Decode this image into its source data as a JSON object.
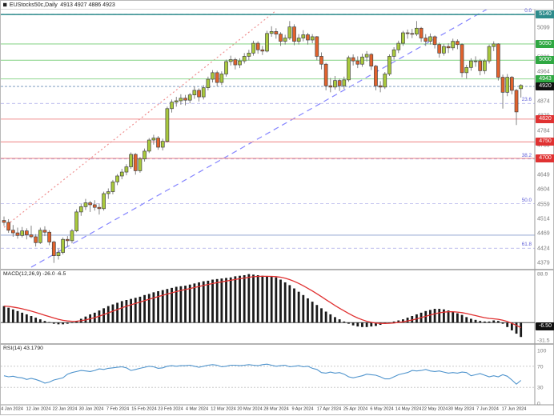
{
  "header": {
    "symbol_title": "EUStocks50c,Daily",
    "ohlc": "4913 4927 4886 4923"
  },
  "colors": {
    "bull": "#a9c93c",
    "bear": "#e2622d",
    "candle_stroke": "#444444",
    "wick": "#777777",
    "green_line": "#8fd68f",
    "green_badge": "#2fa842",
    "teal_line": "#2d8c8c",
    "teal_badge": "#2d8c8c",
    "red_line": "#ef8f8f",
    "red_badge": "#e03232",
    "steel_line": "#9fb0d8",
    "bid_line": "#8ea8c8",
    "bid_badge": "#111111",
    "fib": "#8c8ce0",
    "trend_blue": "#8484ff",
    "trend_red": "#ef9090",
    "macd_bar": "#1a1a1a",
    "macd_signal": "#e03030",
    "rsi_line": "#4f94cd"
  },
  "time_axis": {
    "labels": [
      "4 Jan 2024",
      "12 Jan 2024",
      "22 Jan 2024",
      "30 Jan 2024",
      "7 Feb 2024",
      "15 Feb 2024",
      "23 Feb 2024",
      "4 Mar 2024",
      "12 Mar 2024",
      "20 Mar 2024",
      "28 Mar 2024",
      "9 Apr 2024",
      "17 Apr 2024",
      "25 Apr 2024",
      "6 May 2024",
      "14 May 2024",
      "22 May 2024",
      "30 May 2024",
      "7 Jun 2024",
      "17 Jun 2024"
    ]
  },
  "chart_data": [
    {
      "type": "candlestick",
      "title": "EUStocks50c,Daily",
      "ylim": [
        4362,
        5155
      ],
      "y_axis_labels": [
        5099,
        5009,
        4964,
        4874,
        4829,
        4784,
        4739,
        4694,
        4649,
        4604,
        4559,
        4514,
        4469,
        4424,
        4379
      ],
      "price_lines": [
        {
          "price": 5140,
          "style": "teal",
          "badge": "5140"
        },
        {
          "price": 5050,
          "style": "green",
          "badge": "5050"
        },
        {
          "price": 5000,
          "style": "green",
          "badge": "5000"
        },
        {
          "price": 4943,
          "style": "green",
          "badge": "4943"
        },
        {
          "price": 4920,
          "style": "bid",
          "badge": "4920"
        },
        {
          "price": 4820,
          "style": "red",
          "badge": "4820"
        },
        {
          "price": 4750,
          "style": "red",
          "badge": "4750"
        },
        {
          "price": 4700,
          "style": "red",
          "badge": "4700"
        },
        {
          "price": 4465,
          "style": "steel",
          "badge": null
        }
      ],
      "fib_levels": [
        {
          "label": "0.0",
          "price": 5141
        },
        {
          "label": "23.6",
          "price": 4868
        },
        {
          "label": "38.2",
          "price": 4698
        },
        {
          "label": "50.0",
          "price": 4561
        },
        {
          "label": "61.8",
          "price": 4425
        }
      ],
      "trend_lines": [
        {
          "dash": "dashed",
          "color_key": "trend_blue",
          "from": {
            "bar": 6,
            "price": 4367
          },
          "to": {
            "bar": 107,
            "price": 5160
          }
        },
        {
          "dash": "dotted",
          "color_key": "trend_red",
          "from": {
            "bar": 0,
            "price": 4489
          },
          "to": {
            "bar": 60,
            "price": 5152
          }
        }
      ],
      "candles": [
        [
          4510,
          4522,
          4494,
          4504
        ],
        [
          4504,
          4514,
          4472,
          4480
        ],
        [
          4480,
          4496,
          4460,
          4472
        ],
        [
          4472,
          4488,
          4454,
          4464
        ],
        [
          4464,
          4490,
          4458,
          4478
        ],
        [
          4478,
          4486,
          4452,
          4466
        ],
        [
          4466,
          4494,
          4456,
          4460
        ],
        [
          4460,
          4468,
          4430,
          4442
        ],
        [
          4442,
          4488,
          4438,
          4480
        ],
        [
          4480,
          4492,
          4462,
          4474
        ],
        [
          4474,
          4480,
          4434,
          4444
        ],
        [
          4444,
          4448,
          4380,
          4402
        ],
        [
          4402,
          4424,
          4390,
          4412
        ],
        [
          4412,
          4458,
          4406,
          4452
        ],
        [
          4452,
          4462,
          4430,
          4448
        ],
        [
          4448,
          4484,
          4440,
          4478
        ],
        [
          4478,
          4544,
          4474,
          4536
        ],
        [
          4536,
          4560,
          4524,
          4552
        ],
        [
          4552,
          4576,
          4542,
          4564
        ],
        [
          4564,
          4570,
          4536,
          4558
        ],
        [
          4558,
          4572,
          4540,
          4550
        ],
        [
          4550,
          4562,
          4528,
          4546
        ],
        [
          4546,
          4598,
          4540,
          4592
        ],
        [
          4592,
          4608,
          4576,
          4598
        ],
        [
          4598,
          4634,
          4590,
          4628
        ],
        [
          4628,
          4652,
          4618,
          4646
        ],
        [
          4646,
          4668,
          4636,
          4658
        ],
        [
          4658,
          4682,
          4648,
          4674
        ],
        [
          4674,
          4718,
          4668,
          4712
        ],
        [
          4712,
          4716,
          4650,
          4662
        ],
        [
          4662,
          4704,
          4656,
          4698
        ],
        [
          4698,
          4730,
          4690,
          4722
        ],
        [
          4722,
          4762,
          4716,
          4756
        ],
        [
          4756,
          4772,
          4742,
          4762
        ],
        [
          4762,
          4768,
          4726,
          4734
        ],
        [
          4734,
          4760,
          4724,
          4752
        ],
        [
          4752,
          4858,
          4748,
          4852
        ],
        [
          4852,
          4880,
          4840,
          4872
        ],
        [
          4872,
          4888,
          4858,
          4876
        ],
        [
          4876,
          4896,
          4864,
          4884
        ],
        [
          4884,
          4894,
          4862,
          4878
        ],
        [
          4878,
          4900,
          4868,
          4894
        ],
        [
          4894,
          4920,
          4882,
          4908
        ],
        [
          4908,
          4914,
          4874,
          4888
        ],
        [
          4888,
          4924,
          4880,
          4916
        ],
        [
          4916,
          4950,
          4908,
          4942
        ],
        [
          4942,
          4970,
          4932,
          4962
        ],
        [
          4962,
          4968,
          4920,
          4932
        ],
        [
          4932,
          4966,
          4924,
          4958
        ],
        [
          4958,
          5002,
          4950,
          4996
        ],
        [
          4996,
          5014,
          4984,
          5002
        ],
        [
          5002,
          5008,
          4972,
          4986
        ],
        [
          4986,
          5006,
          4976,
          4998
        ],
        [
          4998,
          5022,
          4990,
          5012
        ],
        [
          5012,
          5032,
          5000,
          5022
        ],
        [
          5022,
          5060,
          5014,
          5052
        ],
        [
          5052,
          5058,
          5020,
          5032
        ],
        [
          5032,
          5044,
          5016,
          5028
        ],
        [
          5028,
          5090,
          5024,
          5082
        ],
        [
          5082,
          5104,
          5072,
          5088
        ],
        [
          5088,
          5098,
          5066,
          5080
        ],
        [
          5080,
          5086,
          5044,
          5058
        ],
        [
          5058,
          5078,
          5048,
          5068
        ],
        [
          5068,
          5120,
          5062,
          5102
        ],
        [
          5102,
          5110,
          5046,
          5058
        ],
        [
          5058,
          5080,
          5048,
          5068
        ],
        [
          5068,
          5092,
          5058,
          5078
        ],
        [
          5078,
          5084,
          5048,
          5062
        ],
        [
          5062,
          5080,
          5052,
          5072
        ],
        [
          5072,
          5074,
          5000,
          5012
        ],
        [
          5012,
          5024,
          4972,
          4988
        ],
        [
          4988,
          4992,
          4908,
          4922
        ],
        [
          4922,
          4946,
          4902,
          4918
        ],
        [
          4918,
          4952,
          4910,
          4938
        ],
        [
          4938,
          4944,
          4906,
          4922
        ],
        [
          4922,
          4950,
          4912,
          4940
        ],
        [
          4940,
          5014,
          4934,
          5008
        ],
        [
          5008,
          5018,
          4984,
          4998
        ],
        [
          4998,
          5012,
          4976,
          4988
        ],
        [
          4988,
          5020,
          4980,
          5010
        ],
        [
          5010,
          5028,
          4996,
          5018
        ],
        [
          5018,
          5022,
          4970,
          4982
        ],
        [
          4982,
          4986,
          4908,
          4922
        ],
        [
          4922,
          4936,
          4902,
          4918
        ],
        [
          4918,
          4964,
          4912,
          4958
        ],
        [
          4958,
          5018,
          4952,
          5012
        ],
        [
          5012,
          5040,
          5002,
          5032
        ],
        [
          5032,
          5060,
          5022,
          5052
        ],
        [
          5052,
          5090,
          5044,
          5084
        ],
        [
          5084,
          5094,
          5066,
          5082
        ],
        [
          5082,
          5096,
          5068,
          5080
        ],
        [
          5080,
          5120,
          5074,
          5098
        ],
        [
          5098,
          5102,
          5056,
          5068
        ],
        [
          5068,
          5080,
          5044,
          5058
        ],
        [
          5058,
          5082,
          5048,
          5072
        ],
        [
          5072,
          5076,
          5036,
          5048
        ],
        [
          5048,
          5054,
          5008,
          5022
        ],
        [
          5022,
          5050,
          5014,
          5042
        ],
        [
          5042,
          5052,
          5022,
          5038
        ],
        [
          5038,
          5066,
          5030,
          5058
        ],
        [
          5058,
          5064,
          5034,
          5048
        ],
        [
          5048,
          5052,
          4948,
          4962
        ],
        [
          4962,
          4986,
          4944,
          4978
        ],
        [
          4978,
          5006,
          4968,
          4998
        ],
        [
          4998,
          5012,
          4980,
          4998
        ],
        [
          4998,
          5004,
          4954,
          4968
        ],
        [
          4968,
          5004,
          4958,
          4998
        ],
        [
          4998,
          5048,
          4990,
          5042
        ],
        [
          5042,
          5058,
          5028,
          5050
        ],
        [
          5050,
          5052,
          4938,
          4948
        ],
        [
          4948,
          4956,
          4852,
          4902
        ],
        [
          4902,
          4958,
          4890,
          4948
        ],
        [
          4948,
          4952,
          4896,
          4908
        ],
        [
          4908,
          4912,
          4802,
          4842
        ],
        [
          4913,
          4927,
          4886,
          4923
        ]
      ]
    },
    {
      "type": "bar",
      "label": "MACD(12,26,9) -26.0 -6.5",
      "ylim": [
        -31.5,
        88.9
      ],
      "scale_labels": [
        "88.9",
        "-31.5"
      ],
      "badge": {
        "text": "-6.50"
      },
      "values": [
        30,
        27,
        24,
        21,
        18,
        15,
        12,
        9,
        6,
        3,
        1,
        -2,
        -3,
        -3,
        -2,
        0,
        3,
        7,
        11,
        15,
        18,
        22,
        26,
        30,
        33,
        36,
        39,
        41,
        43,
        45,
        47,
        50,
        52,
        55,
        57,
        59,
        61,
        63,
        65,
        66,
        67,
        69,
        71,
        73,
        75,
        76,
        78,
        79,
        80,
        81,
        82,
        84,
        85,
        86,
        88,
        87,
        86,
        85,
        84,
        83,
        82,
        78,
        73,
        68,
        62,
        56,
        50,
        44,
        38,
        32,
        26,
        20,
        15,
        10,
        6,
        2,
        -2,
        -5,
        -7,
        -8,
        -8,
        -7,
        -6,
        -4,
        -2,
        0,
        2,
        4,
        6,
        9,
        12,
        15,
        18,
        21,
        23,
        25,
        25,
        24,
        22,
        20,
        17,
        14,
        10,
        7,
        5,
        3,
        2,
        2,
        4,
        3,
        -2,
        -8,
        -14,
        -20,
        -26
      ],
      "signal": "ema9"
    },
    {
      "type": "line",
      "label": "RSI(14) 43.1790",
      "ylim": [
        0,
        100
      ],
      "levels": [
        70,
        30
      ],
      "scale_labels": [
        "100",
        "70",
        "30",
        "0"
      ],
      "values": [
        52,
        50,
        51,
        49,
        48,
        45,
        47,
        45,
        42,
        38,
        40,
        44,
        46,
        48,
        55,
        58,
        60,
        62,
        61,
        60,
        62,
        65,
        64,
        66,
        67,
        68,
        69,
        67,
        62,
        64,
        66,
        68,
        70,
        69,
        66,
        67,
        70,
        71,
        70,
        71,
        71,
        72,
        70,
        68,
        70,
        72,
        73,
        72,
        69,
        70,
        72,
        72,
        71,
        72,
        73,
        72,
        71,
        73,
        74,
        72,
        70,
        71,
        72,
        69,
        70,
        71,
        69,
        70,
        66,
        64,
        58,
        57,
        59,
        57,
        58,
        55,
        50,
        48,
        50,
        52,
        55,
        54,
        53,
        50,
        46,
        46,
        50,
        54,
        56,
        58,
        62,
        61,
        62,
        64,
        61,
        60,
        61,
        59,
        57,
        58,
        57,
        59,
        58,
        52,
        54,
        56,
        53,
        50,
        52,
        50,
        54,
        51,
        44,
        36,
        43.18
      ]
    }
  ]
}
